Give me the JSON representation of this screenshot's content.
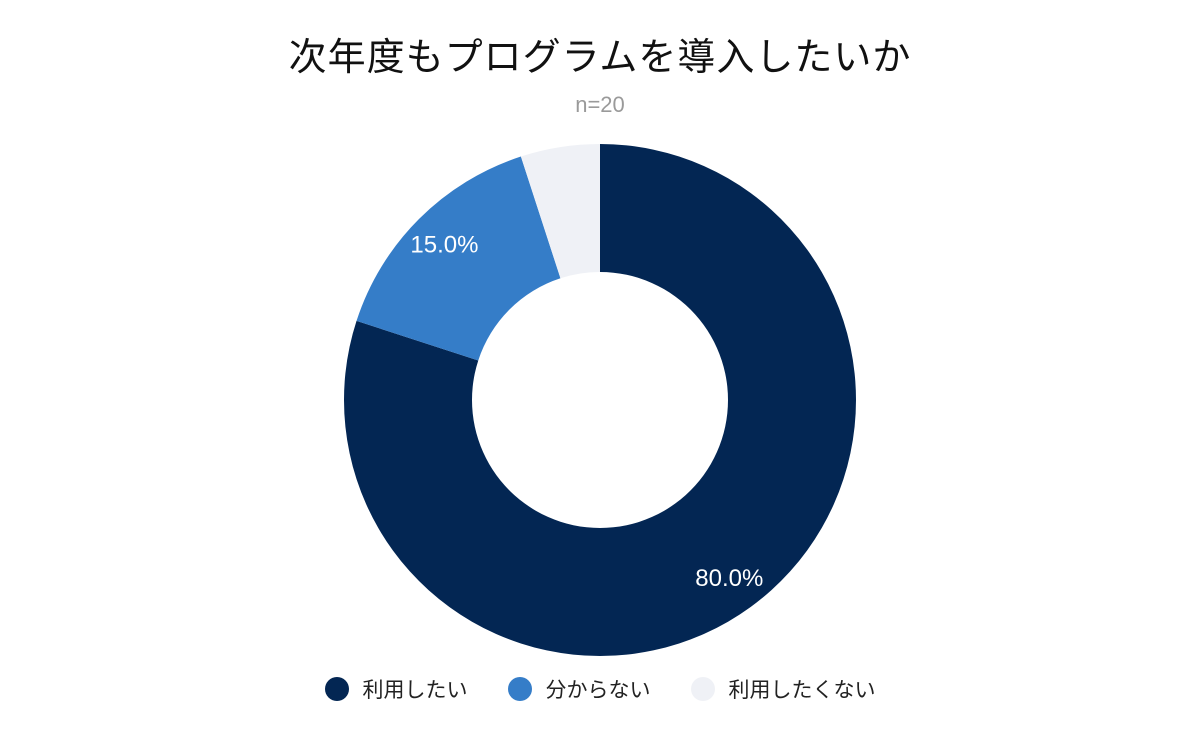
{
  "chart_data": {
    "type": "pie",
    "title": "次年度もプログラムを導入したいか",
    "subtitle": "n=20",
    "categories": [
      "利用したい",
      "分からない",
      "利用したくない"
    ],
    "values": [
      80.0,
      15.0,
      5.0
    ],
    "data_labels": [
      "80.0%",
      "15.0%",
      ""
    ],
    "colors": [
      "#032653",
      "#357DC8",
      "#EFF1F6"
    ],
    "legend_position": "bottom"
  }
}
